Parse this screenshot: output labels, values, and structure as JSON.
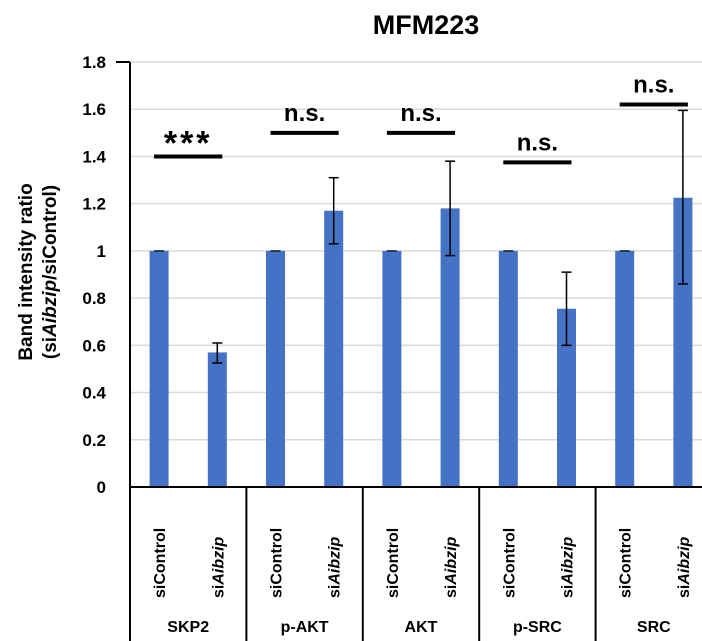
{
  "chart_data": {
    "type": "bar",
    "title": "MFM223",
    "ylabel_line1": "Band intensity ratio",
    "ylabel_line2": {
      "prefix": "(si",
      "italic": "Aibzip",
      "suffix": "/siControl)"
    },
    "ylim": [
      0,
      1.8
    ],
    "yticks": [
      "0",
      "0.2",
      "0.4",
      "0.6",
      "0.8",
      "1",
      "1.2",
      "1.4",
      "1.6",
      "1.8"
    ],
    "grid": true,
    "bar_color": "#4472C4",
    "groups": [
      {
        "label": "SKP2",
        "bars": [
          {
            "label": "siControl",
            "value": 1.0,
            "err_low": 1.0,
            "err_high": 1.0
          },
          {
            "label": "siAibzip",
            "value": 0.57,
            "err_low": 0.525,
            "err_high": 0.61
          }
        ],
        "significance": "***"
      },
      {
        "label": "p-AKT",
        "bars": [
          {
            "label": "siControl",
            "value": 1.0,
            "err_low": 1.0,
            "err_high": 1.0
          },
          {
            "label": "siAibzip",
            "value": 1.17,
            "err_low": 1.03,
            "err_high": 1.31
          }
        ],
        "significance": "n.s."
      },
      {
        "label": "AKT",
        "bars": [
          {
            "label": "siControl",
            "value": 1.0,
            "err_low": 1.0,
            "err_high": 1.0
          },
          {
            "label": "siAibzip",
            "value": 1.18,
            "err_low": 0.98,
            "err_high": 1.38
          }
        ],
        "significance": "n.s."
      },
      {
        "label": "p-SRC",
        "bars": [
          {
            "label": "siControl",
            "value": 1.0,
            "err_low": 1.0,
            "err_high": 1.0
          },
          {
            "label": "siAibzip",
            "value": 0.755,
            "err_low": 0.6,
            "err_high": 0.91
          }
        ],
        "significance": "n.s."
      },
      {
        "label": "SRC",
        "bars": [
          {
            "label": "siControl",
            "value": 1.0,
            "err_low": 1.0,
            "err_high": 1.0
          },
          {
            "label": "siAibzip",
            "value": 1.225,
            "err_low": 0.86,
            "err_high": 1.595
          }
        ],
        "significance": "n.s."
      }
    ],
    "sig_line_level": [
      1.4,
      1.5,
      1.5,
      1.375,
      1.62
    ]
  }
}
